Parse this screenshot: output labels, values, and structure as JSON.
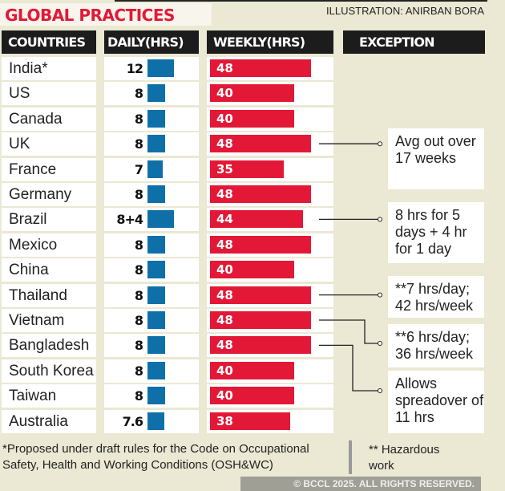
{
  "title": "GLOBAL PRACTICES",
  "credit": "ILLUSTRATION: ANIRBAN BORA",
  "headers": {
    "countries": "COUNTRIES",
    "daily": "DAILY(HRS)",
    "weekly": "WEEKLY(HRS)",
    "exception": "EXCEPTION"
  },
  "colors": {
    "daily_bar": "#0f70a9",
    "weekly_bar": "#e31837",
    "title": "#e31837"
  },
  "chart_data": {
    "type": "table",
    "rows": [
      {
        "country": "India*",
        "daily": "12",
        "daily_value": 12,
        "weekly": 48
      },
      {
        "country": "US",
        "daily": "8",
        "daily_value": 8,
        "weekly": 40
      },
      {
        "country": "Canada",
        "daily": "8",
        "daily_value": 8,
        "weekly": 40
      },
      {
        "country": "UK",
        "daily": "8",
        "daily_value": 8,
        "weekly": 48
      },
      {
        "country": "France",
        "daily": "7",
        "daily_value": 7,
        "weekly": 35
      },
      {
        "country": "Germany",
        "daily": "8",
        "daily_value": 8,
        "weekly": 48
      },
      {
        "country": "Brazil",
        "daily": "8+4",
        "daily_value": 12,
        "weekly": 44
      },
      {
        "country": "Mexico",
        "daily": "8",
        "daily_value": 8,
        "weekly": 48
      },
      {
        "country": "China",
        "daily": "8",
        "daily_value": 8,
        "weekly": 40
      },
      {
        "country": "Thailand",
        "daily": "8",
        "daily_value": 8,
        "weekly": 48
      },
      {
        "country": "Vietnam",
        "daily": "8",
        "daily_value": 8,
        "weekly": 48
      },
      {
        "country": "Bangladesh",
        "daily": "8",
        "daily_value": 8,
        "weekly": 48
      },
      {
        "country": "South Korea",
        "daily": "8",
        "daily_value": 8,
        "weekly": 40
      },
      {
        "country": "Taiwan",
        "daily": "8",
        "daily_value": 8,
        "weekly": 40
      },
      {
        "country": "Australia",
        "daily": "7.6",
        "daily_value": 7.6,
        "weekly": 38
      }
    ],
    "exceptions": [
      {
        "country": "UK",
        "text": "Avg out over 17 weeks"
      },
      {
        "country": "Brazil",
        "text": "8 hrs for 5 days + 4 hr for 1 day"
      },
      {
        "country": "Thailand",
        "text": "**7 hrs/day; 42 hrs/week"
      },
      {
        "country": "Vietnam",
        "text": "**6 hrs/day; 36 hrs/week"
      },
      {
        "country": "Bangladesh",
        "text": "Allows spreadover of 11 hrs"
      }
    ]
  },
  "watermark": "© BCCL 2025. ALL RIGHTS RESERVED.",
  "footnote_1": "*Proposed under draft rules for the Code on Occupational Safety, Health and Working Conditions (OSH&WC)",
  "footnote_2": "** Hazardous work"
}
